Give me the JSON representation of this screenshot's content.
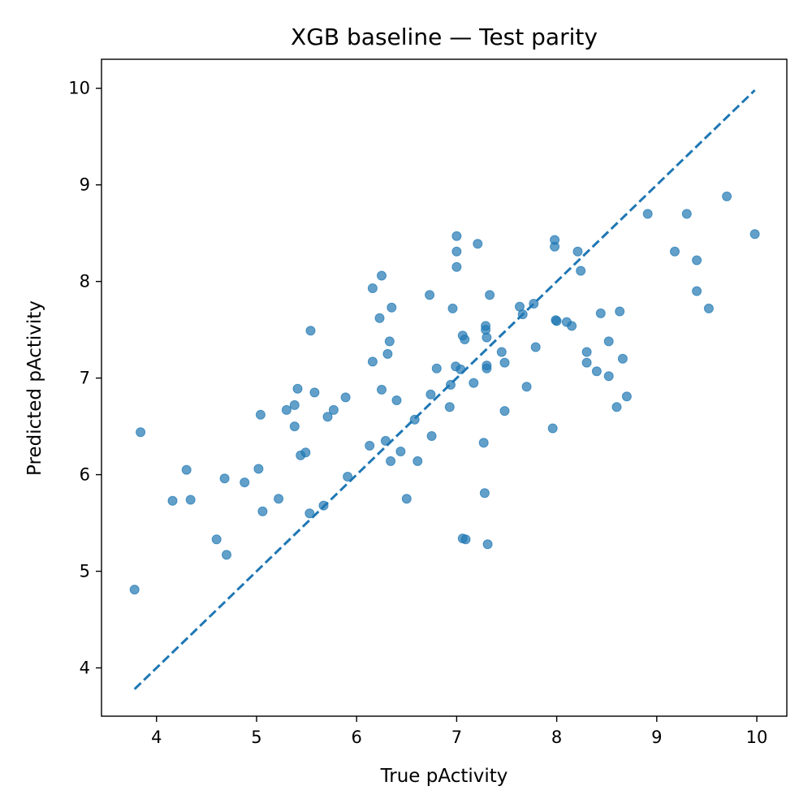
{
  "chart_data": {
    "type": "scatter",
    "title": "XGB baseline — Test parity",
    "xlabel": "True pActivity",
    "ylabel": "Predicted pActivity",
    "xlim": [
      3.45,
      10.3
    ],
    "ylim": [
      3.5,
      10.3
    ],
    "x_ticks": [
      "4",
      "5",
      "6",
      "7",
      "8",
      "9",
      "10"
    ],
    "y_ticks": [
      "4",
      "5",
      "6",
      "7",
      "8",
      "9",
      "10"
    ],
    "grid": false,
    "point_color": "#1f77b4",
    "line_color": "#1f77b4",
    "parity_line": {
      "style": "dashed",
      "from": [
        3.78,
        3.78
      ],
      "to": [
        9.98,
        9.98
      ]
    },
    "points": [
      [
        3.78,
        4.81
      ],
      [
        3.84,
        6.44
      ],
      [
        4.16,
        5.73
      ],
      [
        4.3,
        6.05
      ],
      [
        4.34,
        5.74
      ],
      [
        4.6,
        5.33
      ],
      [
        4.68,
        5.96
      ],
      [
        4.7,
        5.17
      ],
      [
        4.88,
        5.92
      ],
      [
        5.02,
        6.06
      ],
      [
        5.04,
        6.62
      ],
      [
        5.06,
        5.62
      ],
      [
        5.22,
        5.75
      ],
      [
        5.3,
        6.67
      ],
      [
        5.38,
        6.72
      ],
      [
        5.38,
        6.5
      ],
      [
        5.41,
        6.89
      ],
      [
        5.44,
        6.2
      ],
      [
        5.49,
        6.23
      ],
      [
        5.53,
        5.6
      ],
      [
        5.54,
        7.49
      ],
      [
        5.58,
        6.85
      ],
      [
        5.67,
        5.68
      ],
      [
        5.71,
        6.6
      ],
      [
        5.77,
        6.67
      ],
      [
        5.89,
        6.8
      ],
      [
        5.91,
        5.98
      ],
      [
        6.13,
        6.3
      ],
      [
        6.16,
        7.93
      ],
      [
        6.16,
        7.17
      ],
      [
        6.23,
        7.62
      ],
      [
        6.25,
        8.06
      ],
      [
        6.25,
        6.88
      ],
      [
        6.29,
        6.35
      ],
      [
        6.31,
        7.25
      ],
      [
        6.33,
        7.38
      ],
      [
        6.34,
        6.14
      ],
      [
        6.35,
        7.73
      ],
      [
        6.4,
        6.77
      ],
      [
        6.44,
        6.24
      ],
      [
        6.5,
        5.75
      ],
      [
        6.58,
        6.57
      ],
      [
        6.61,
        6.14
      ],
      [
        6.73,
        7.86
      ],
      [
        6.74,
        6.83
      ],
      [
        6.75,
        6.4
      ],
      [
        6.8,
        7.1
      ],
      [
        6.93,
        6.7
      ],
      [
        6.94,
        6.93
      ],
      [
        6.96,
        7.72
      ],
      [
        6.99,
        7.12
      ],
      [
        7.0,
        8.47
      ],
      [
        7.0,
        8.31
      ],
      [
        7.0,
        8.15
      ],
      [
        7.04,
        7.09
      ],
      [
        7.06,
        7.44
      ],
      [
        7.06,
        5.34
      ],
      [
        7.08,
        7.4
      ],
      [
        7.09,
        5.33
      ],
      [
        7.17,
        6.95
      ],
      [
        7.21,
        8.39
      ],
      [
        7.27,
        6.33
      ],
      [
        7.28,
        5.81
      ],
      [
        7.29,
        7.54
      ],
      [
        7.29,
        7.5
      ],
      [
        7.3,
        7.42
      ],
      [
        7.3,
        7.13
      ],
      [
        7.3,
        7.1
      ],
      [
        7.31,
        5.28
      ],
      [
        7.33,
        7.86
      ],
      [
        7.45,
        7.27
      ],
      [
        7.48,
        7.16
      ],
      [
        7.48,
        6.66
      ],
      [
        7.63,
        7.74
      ],
      [
        7.66,
        7.66
      ],
      [
        7.7,
        6.91
      ],
      [
        7.77,
        7.77
      ],
      [
        7.79,
        7.32
      ],
      [
        7.96,
        6.48
      ],
      [
        7.98,
        8.43
      ],
      [
        7.98,
        8.36
      ],
      [
        7.99,
        7.6
      ],
      [
        8.0,
        7.59
      ],
      [
        8.1,
        7.58
      ],
      [
        8.15,
        7.54
      ],
      [
        8.21,
        8.31
      ],
      [
        8.24,
        8.11
      ],
      [
        8.3,
        7.27
      ],
      [
        8.3,
        7.16
      ],
      [
        8.4,
        7.07
      ],
      [
        8.44,
        7.67
      ],
      [
        8.52,
        7.38
      ],
      [
        8.52,
        7.02
      ],
      [
        8.6,
        6.7
      ],
      [
        8.63,
        7.69
      ],
      [
        8.66,
        7.2
      ],
      [
        8.7,
        6.81
      ],
      [
        8.91,
        8.7
      ],
      [
        9.18,
        8.31
      ],
      [
        9.3,
        8.7
      ],
      [
        9.4,
        8.22
      ],
      [
        9.4,
        7.9
      ],
      [
        9.52,
        7.72
      ],
      [
        9.7,
        8.88
      ],
      [
        9.98,
        8.49
      ]
    ]
  }
}
